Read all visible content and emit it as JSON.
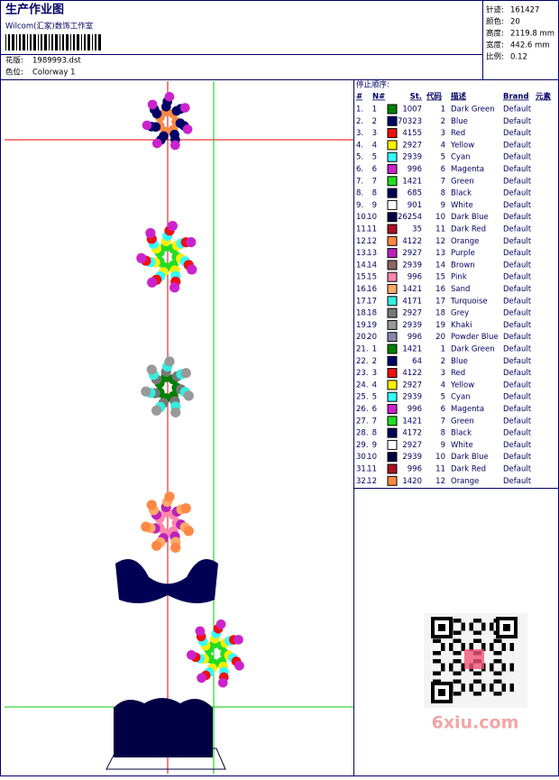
{
  "header": {
    "title": "生产作业图",
    "studio": "Wilcom(汇家)数饰工作室",
    "design_label": "花版:",
    "design_file": "1989993.dst",
    "colorway_label": "色位:",
    "colorway": "Colorway 1"
  },
  "stats": [
    {
      "label": "针迹:",
      "value": "161427"
    },
    {
      "label": "颜色:",
      "value": "20"
    },
    {
      "label": "高度:",
      "value": "2119.8 mm"
    },
    {
      "label": "宽度:",
      "value": "442.6 mm"
    },
    {
      "label": "比例:",
      "value": "0.12"
    }
  ],
  "table": {
    "caption": "停止顺序:",
    "headers": [
      "#",
      "N#",
      "St.",
      "代码",
      "描述",
      "Brand",
      "元素"
    ],
    "rows": [
      [
        "1.",
        "1",
        "#008000",
        "1007",
        "1",
        "Dark Green",
        "Default"
      ],
      [
        "2.",
        "2",
        "#000066",
        "70323",
        "2",
        "Blue",
        "Default"
      ],
      [
        "3.",
        "3",
        "#ee1111",
        "4155",
        "3",
        "Red",
        "Default"
      ],
      [
        "4.",
        "4",
        "#ffee00",
        "2927",
        "4",
        "Yellow",
        "Default"
      ],
      [
        "5.",
        "5",
        "#33ffff",
        "2939",
        "5",
        "Cyan",
        "Default"
      ],
      [
        "6.",
        "6",
        "#cc22cc",
        "996",
        "6",
        "Magenta",
        "Default"
      ],
      [
        "7.",
        "7",
        "#22dd22",
        "1421",
        "7",
        "Green",
        "Default"
      ],
      [
        "8.",
        "8",
        "#000055",
        "685",
        "8",
        "Black",
        "Default"
      ],
      [
        "9.",
        "9",
        "#ffffff",
        "901",
        "9",
        "White",
        "Default"
      ],
      [
        "10.",
        "10",
        "#000044",
        "26254",
        "10",
        "Dark Blue",
        "Default"
      ],
      [
        "11.",
        "11",
        "#aa1122",
        "35",
        "11",
        "Dark Red",
        "Default"
      ],
      [
        "12.",
        "12",
        "#ff8844",
        "4122",
        "12",
        "Orange",
        "Default"
      ],
      [
        "13.",
        "13",
        "#bb22bb",
        "2927",
        "13",
        "Purple",
        "Default"
      ],
      [
        "14.",
        "14",
        "#886666",
        "2939",
        "14",
        "Brown",
        "Default"
      ],
      [
        "15.",
        "15",
        "#ff88aa",
        "996",
        "15",
        "Pink",
        "Default"
      ],
      [
        "16.",
        "16",
        "#ffaa66",
        "1421",
        "16",
        "Sand",
        "Default"
      ],
      [
        "17.",
        "17",
        "#33eedd",
        "4171",
        "17",
        "Turquoise",
        "Default"
      ],
      [
        "18.",
        "18",
        "#777777",
        "2927",
        "18",
        "Grey",
        "Default"
      ],
      [
        "19.",
        "19",
        "#999999",
        "2939",
        "19",
        "Khaki",
        "Default"
      ],
      [
        "20.",
        "20",
        "#8888aa",
        "996",
        "20",
        "Powder Blue",
        "Default"
      ],
      [
        "21.",
        "1",
        "#008000",
        "1421",
        "1",
        "Dark Green",
        "Default"
      ],
      [
        "22.",
        "2",
        "#000066",
        "64",
        "2",
        "Blue",
        "Default"
      ],
      [
        "23.",
        "3",
        "#ee1111",
        "4122",
        "3",
        "Red",
        "Default"
      ],
      [
        "24.",
        "4",
        "#ffee00",
        "2927",
        "4",
        "Yellow",
        "Default"
      ],
      [
        "25.",
        "5",
        "#33ffff",
        "2939",
        "5",
        "Cyan",
        "Default"
      ],
      [
        "26.",
        "6",
        "#cc22cc",
        "996",
        "6",
        "Magenta",
        "Default"
      ],
      [
        "27.",
        "7",
        "#22dd22",
        "1421",
        "7",
        "Green",
        "Default"
      ],
      [
        "28.",
        "8",
        "#000055",
        "4172",
        "8",
        "Black",
        "Default"
      ],
      [
        "29.",
        "9",
        "#ffffff",
        "2927",
        "9",
        "White",
        "Default"
      ],
      [
        "30.",
        "10",
        "#000044",
        "2939",
        "10",
        "Dark Blue",
        "Default"
      ],
      [
        "31.",
        "11",
        "#aa1122",
        "996",
        "11",
        "Dark Red",
        "Default"
      ],
      [
        "32.",
        "12",
        "#ff8844",
        "1420",
        "12",
        "Orange",
        "Default"
      ]
    ]
  },
  "watermark": "6xiu.com"
}
